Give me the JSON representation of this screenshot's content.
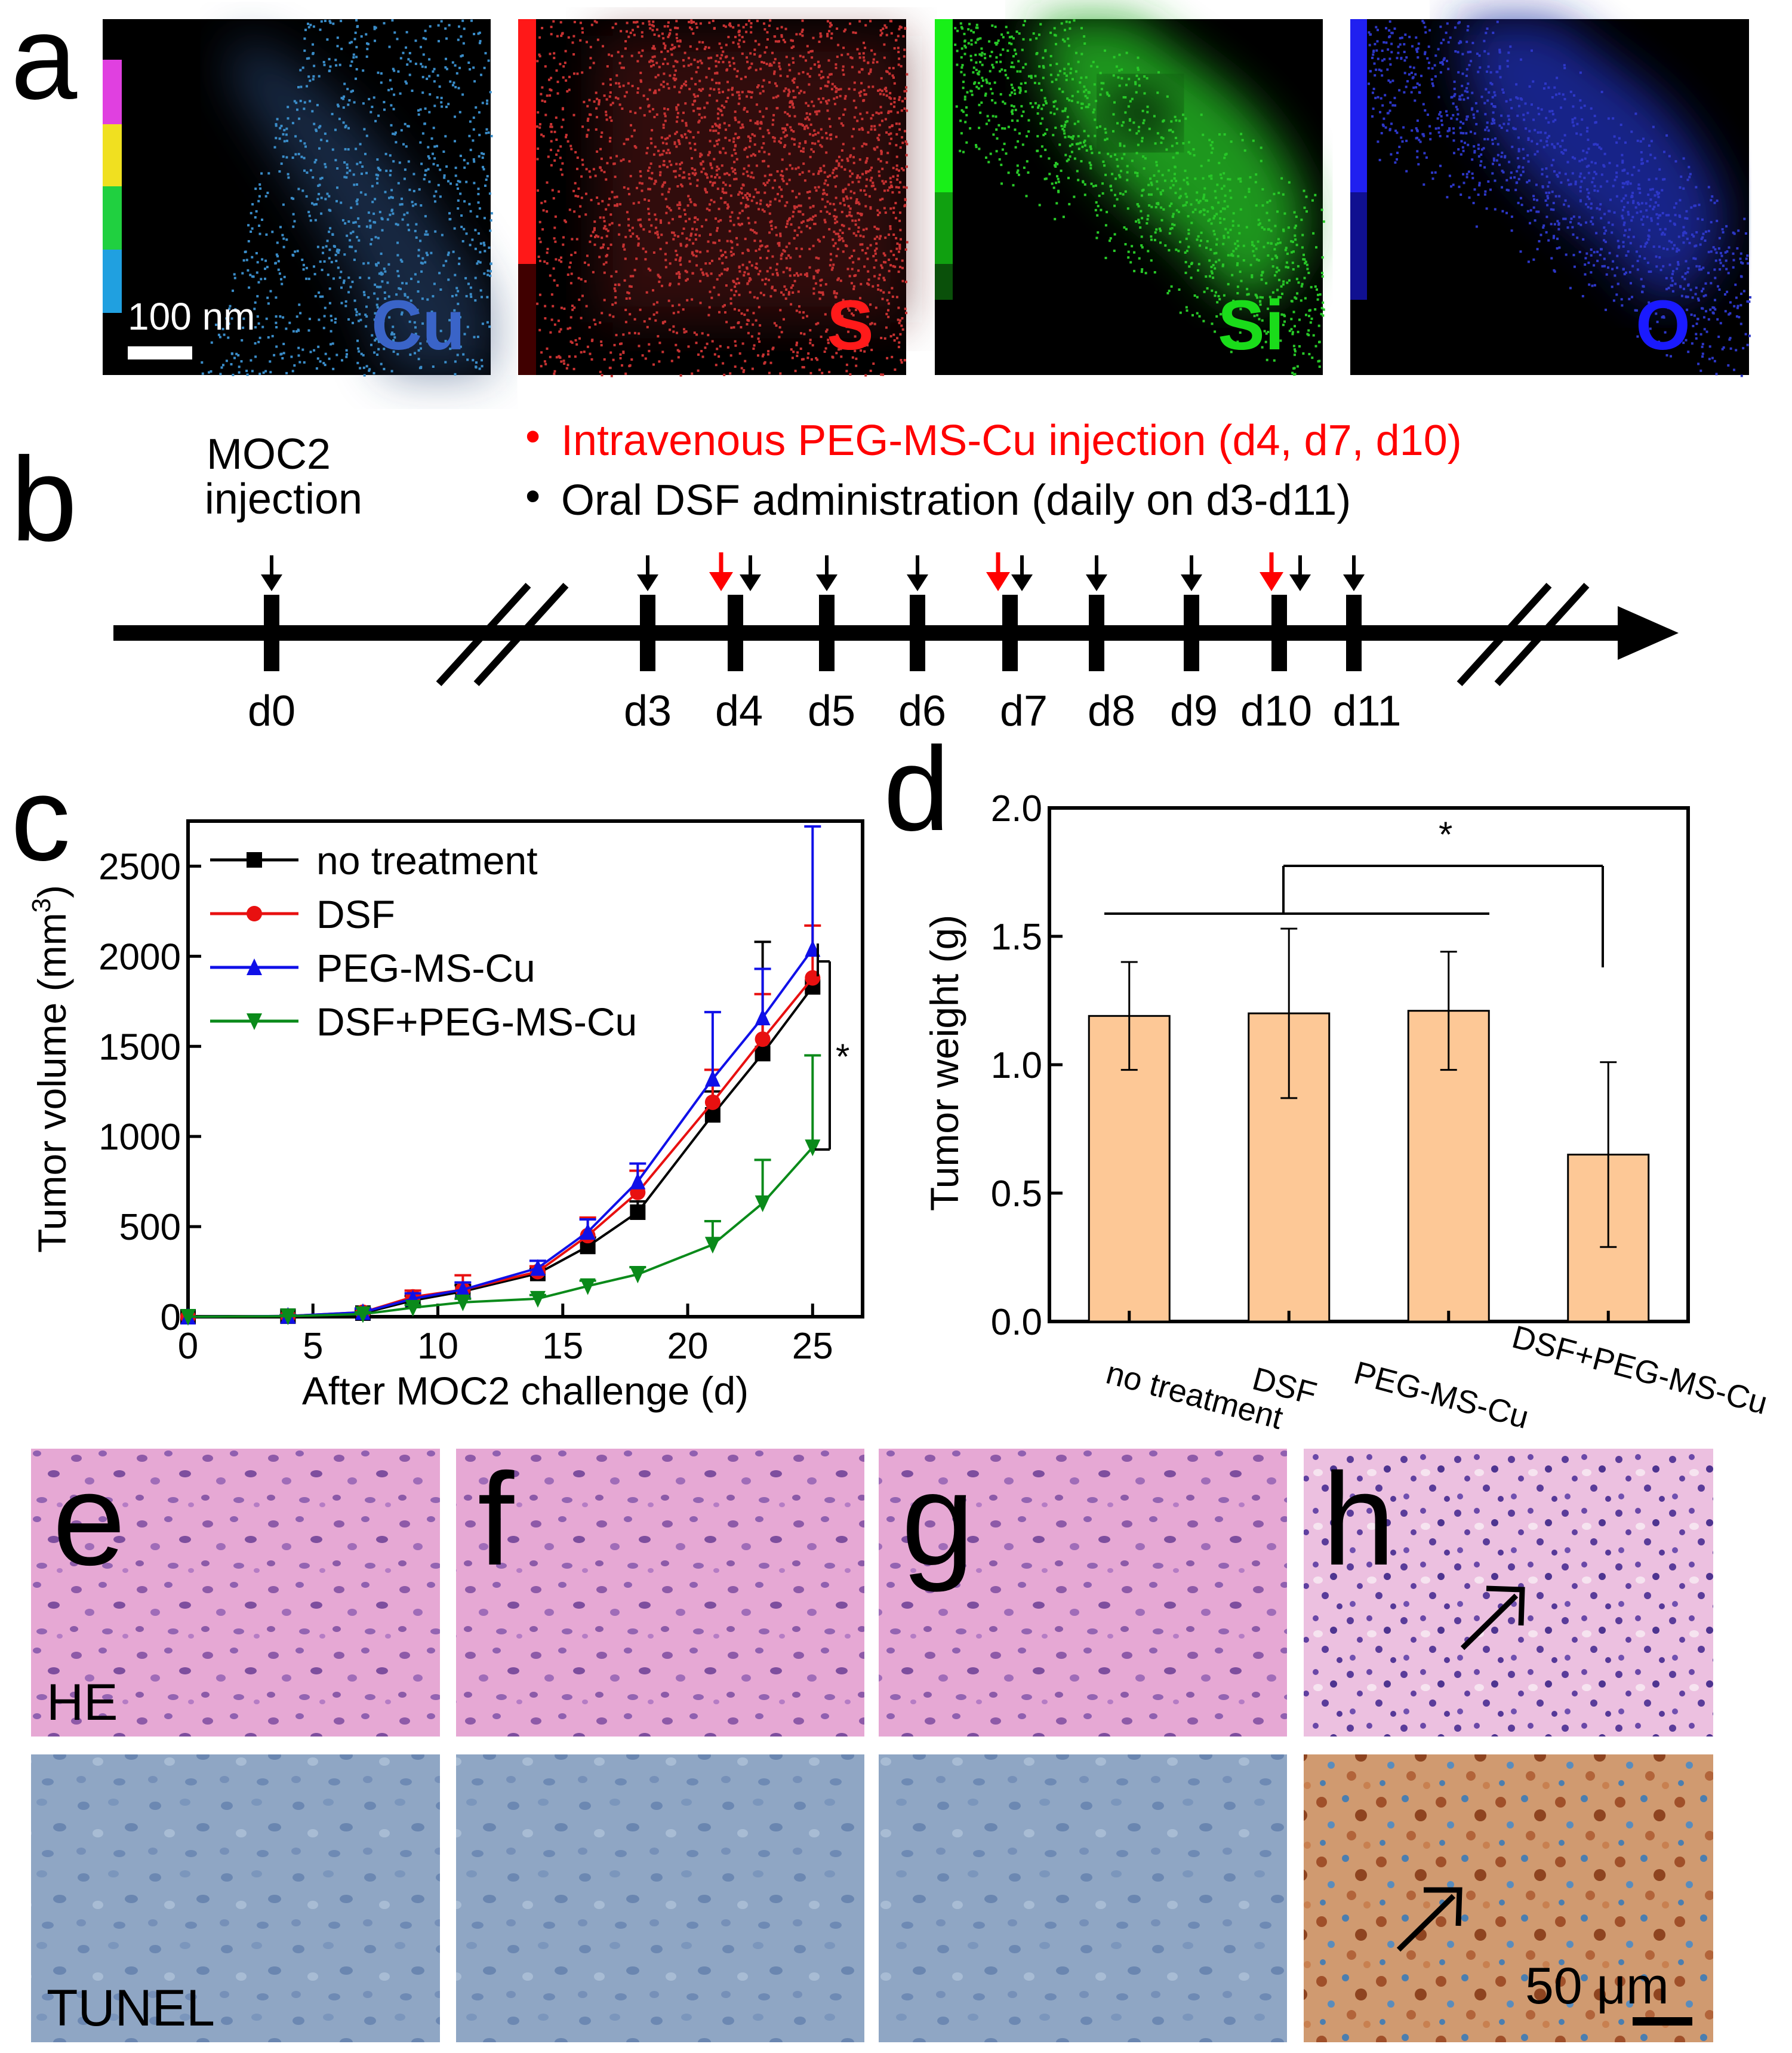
{
  "panel_letters": {
    "a": "a",
    "b": "b",
    "c": "c",
    "d": "d",
    "e": "e",
    "f": "f",
    "g": "g",
    "h": "h"
  },
  "panel_a": {
    "scale_bar_label": "100 nm",
    "maps": [
      {
        "element": "Cu",
        "label_color": "#3a64c8",
        "dot_color": "#3a8cc8"
      },
      {
        "element": "S",
        "label_color": "#ff1a1a",
        "dot_color": "#c83232"
      },
      {
        "element": "Si",
        "label_color": "#1adc1a",
        "dot_color": "#28c828"
      },
      {
        "element": "O",
        "label_color": "#1a1aff",
        "dot_color": "#2d37c8"
      }
    ],
    "colorbar_colors": [
      "#e040e0",
      "#f0e020",
      "#20d040",
      "#20a0e0",
      "#000000"
    ]
  },
  "panel_b": {
    "moc2_label": [
      "MOC2",
      "injection"
    ],
    "legend": [
      {
        "bullet": "•",
        "text": "Intravenous  PEG-MS-Cu injection (d4, d7, d10)",
        "color": "#ff0000"
      },
      {
        "bullet": "•",
        "text": "Oral DSF administration (daily on d3-d11)",
        "color": "#000000"
      }
    ],
    "days": [
      "d0",
      "d3",
      "d4",
      "d5",
      "d6",
      "d7",
      "d8",
      "d9",
      "d10",
      "d11"
    ]
  },
  "chart_data": [
    {
      "type": "line",
      "xlabel": "After MOC2 challenge (d)",
      "ylabel": "Tumor volume (mm3)",
      "xlim": [
        0,
        27
      ],
      "ylim": [
        0,
        2750
      ],
      "xticks": [
        "0",
        "5",
        "10",
        "15",
        "20",
        "25"
      ],
      "yticks": [
        "0",
        "500",
        "1000",
        "1500",
        "2000",
        "2500"
      ],
      "x": [
        0,
        4,
        7,
        9,
        11,
        14,
        16,
        18,
        21,
        23,
        25
      ],
      "series": [
        {
          "name": "no treatment",
          "color": "#000000",
          "marker": "square",
          "values": [
            0,
            3,
            20,
            90,
            140,
            240,
            390,
            580,
            1120,
            1460,
            1830
          ],
          "err": [
            0,
            5,
            15,
            25,
            35,
            25,
            50,
            60,
            130,
            620,
            0
          ]
        },
        {
          "name": "DSF",
          "color": "#e81010",
          "marker": "circle",
          "values": [
            0,
            4,
            25,
            110,
            150,
            250,
            450,
            690,
            1190,
            1540,
            1880
          ],
          "err": [
            0,
            5,
            20,
            35,
            80,
            30,
            100,
            120,
            180,
            250,
            290
          ]
        },
        {
          "name": "PEG-MS-Cu",
          "color": "#1010e8",
          "marker": "triangle-up",
          "values": [
            0,
            4,
            25,
            100,
            150,
            270,
            470,
            750,
            1320,
            1660,
            2040
          ],
          "err": [
            0,
            5,
            20,
            30,
            40,
            40,
            70,
            100,
            370,
            270,
            680
          ]
        },
        {
          "name": "DSF+PEG-MS-Cu",
          "color": "#0a8a1a",
          "marker": "triangle-down",
          "values": [
            0,
            3,
            15,
            50,
            80,
            100,
            170,
            235,
            400,
            630,
            940
          ],
          "err": [
            0,
            5,
            10,
            15,
            20,
            20,
            30,
            40,
            130,
            240,
            510
          ]
        }
      ],
      "significance": "*"
    },
    {
      "type": "bar",
      "ylabel": "Tumor weight (g)",
      "ylim": [
        0,
        2.0
      ],
      "yticks": [
        "0.0",
        "0.5",
        "1.0",
        "1.5",
        "2.0"
      ],
      "categories": [
        "no treatment",
        "DSF",
        "PEG-MS-Cu",
        "DSF+PEG-MS-Cu"
      ],
      "values": [
        1.19,
        1.2,
        1.21,
        0.65
      ],
      "err": [
        0.21,
        0.33,
        0.23,
        0.36
      ],
      "bar_color": "#fdc896",
      "significance": "*"
    }
  ],
  "panel_e_h": {
    "he_label": "HE",
    "tunel_label": "TUNEL",
    "scale_label": "50 μm"
  }
}
